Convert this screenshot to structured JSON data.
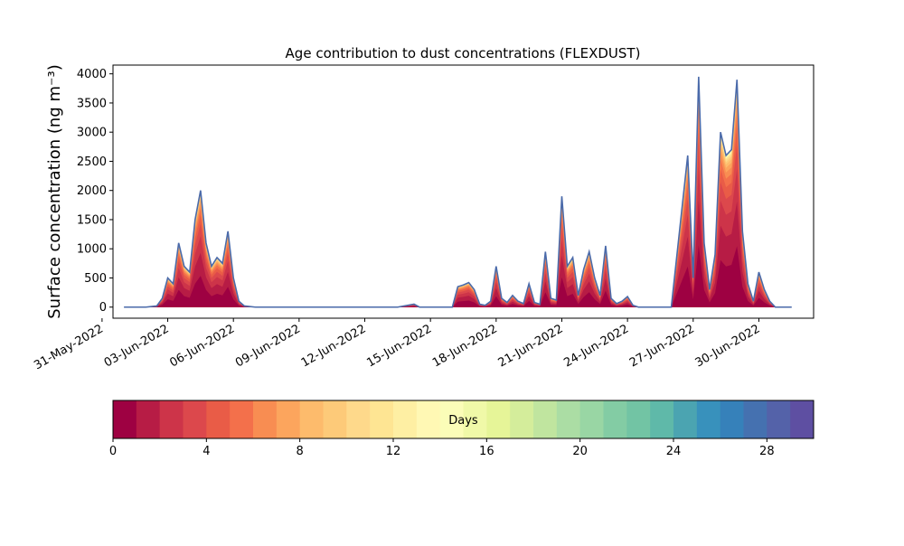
{
  "chart_data": {
    "type": "area",
    "title": "Age contribution to dust concentrations (FLEXDUST)",
    "ylabel": "Surface concentration (ng m⁻³)",
    "xlabel": "",
    "ylim": [
      -190,
      4150
    ],
    "xlim": [
      "2022-05-31T12:00",
      "2022-07-02T12:00"
    ],
    "y_ticks": [
      0,
      500,
      1000,
      1500,
      2000,
      2500,
      3000,
      3500,
      4000
    ],
    "x_ticks": [
      "31-May-2022",
      "03-Jun-2022",
      "06-Jun-2022",
      "09-Jun-2022",
      "12-Jun-2022",
      "15-Jun-2022",
      "18-Jun-2022",
      "21-Jun-2022",
      "24-Jun-2022",
      "27-Jun-2022",
      "30-Jun-2022"
    ],
    "grid": false,
    "series": [
      {
        "description": "Total surface concentration (outer envelope of stacked age contributions)",
        "x": [
          "2022-06-01T00:00",
          "2022-06-02T00:00",
          "2022-06-02T12:00",
          "2022-06-02T18:00",
          "2022-06-03T00:00",
          "2022-06-03T06:00",
          "2022-06-03T12:00",
          "2022-06-03T18:00",
          "2022-06-04T00:00",
          "2022-06-04T06:00",
          "2022-06-04T12:00",
          "2022-06-04T18:00",
          "2022-06-05T00:00",
          "2022-06-05T06:00",
          "2022-06-05T12:00",
          "2022-06-05T18:00",
          "2022-06-06T00:00",
          "2022-06-06T06:00",
          "2022-06-06T12:00",
          "2022-06-07T00:00",
          "2022-06-10T00:00",
          "2022-06-13T12:00",
          "2022-06-14T06:00",
          "2022-06-14T12:00",
          "2022-06-15T00:00",
          "2022-06-16T00:00",
          "2022-06-16T06:00",
          "2022-06-16T12:00",
          "2022-06-16T18:00",
          "2022-06-17T00:00",
          "2022-06-17T06:00",
          "2022-06-17T12:00",
          "2022-06-17T18:00",
          "2022-06-18T00:00",
          "2022-06-18T06:00",
          "2022-06-18T12:00",
          "2022-06-18T18:00",
          "2022-06-19T00:00",
          "2022-06-19T06:00",
          "2022-06-19T12:00",
          "2022-06-19T18:00",
          "2022-06-20T00:00",
          "2022-06-20T06:00",
          "2022-06-20T12:00",
          "2022-06-20T18:00",
          "2022-06-21T00:00",
          "2022-06-21T06:00",
          "2022-06-21T12:00",
          "2022-06-21T18:00",
          "2022-06-22T00:00",
          "2022-06-22T06:00",
          "2022-06-22T12:00",
          "2022-06-22T18:00",
          "2022-06-23T00:00",
          "2022-06-23T06:00",
          "2022-06-23T12:00",
          "2022-06-23T18:00",
          "2022-06-24T00:00",
          "2022-06-24T06:00",
          "2022-06-24T12:00",
          "2022-06-24T18:00",
          "2022-06-25T00:00",
          "2022-06-25T06:00",
          "2022-06-26T00:00",
          "2022-06-26T18:00",
          "2022-06-27T00:00",
          "2022-06-27T06:00",
          "2022-06-27T12:00",
          "2022-06-27T18:00",
          "2022-06-28T00:00",
          "2022-06-28T06:00",
          "2022-06-28T12:00",
          "2022-06-28T18:00",
          "2022-06-29T00:00",
          "2022-06-29T06:00",
          "2022-06-29T12:00",
          "2022-06-29T18:00",
          "2022-06-30T00:00",
          "2022-06-30T06:00",
          "2022-06-30T12:00",
          "2022-06-30T18:00",
          "2022-07-01T00:00",
          "2022-07-01T06:00",
          "2022-07-01T12:00"
        ],
        "values": [
          0,
          0,
          20,
          150,
          500,
          400,
          1100,
          700,
          600,
          1500,
          2000,
          1100,
          700,
          850,
          750,
          1300,
          500,
          100,
          20,
          0,
          0,
          0,
          50,
          0,
          0,
          0,
          350,
          380,
          420,
          300,
          50,
          30,
          100,
          700,
          150,
          80,
          200,
          100,
          60,
          400,
          80,
          50,
          950,
          150,
          120,
          1900,
          700,
          850,
          200,
          650,
          950,
          500,
          200,
          1050,
          150,
          60,
          100,
          180,
          30,
          0,
          0,
          0,
          0,
          0,
          2600,
          500,
          3950,
          1100,
          300,
          900,
          3000,
          2600,
          2700,
          3900,
          1300,
          400,
          100,
          600,
          300,
          100,
          0,
          0,
          0,
          0
        ]
      }
    ],
    "colorbar": {
      "label": "Days",
      "min": 0,
      "max": 30,
      "ticks": [
        0,
        4,
        8,
        12,
        16,
        20,
        24,
        28
      ],
      "colors": [
        "#9e0142",
        "#b71c45",
        "#cd3449",
        "#dc484c",
        "#e95c47",
        "#f3704b",
        "#f88d52",
        "#fca55d",
        "#fdbb6c",
        "#fdca79",
        "#fed98b",
        "#fee593",
        "#feefa3",
        "#fff8b4",
        "#fbfdb8",
        "#f0f9a8",
        "#e6f598",
        "#d4ed9b",
        "#c0e59f",
        "#abdda4",
        "#99d6a4",
        "#83ccA4",
        "#72c4a4",
        "#5fb9a9",
        "#4ba4b1",
        "#3891bc",
        "#3681ba",
        "#4571b0",
        "#5462a9",
        "#5e4fa2"
      ]
    }
  }
}
